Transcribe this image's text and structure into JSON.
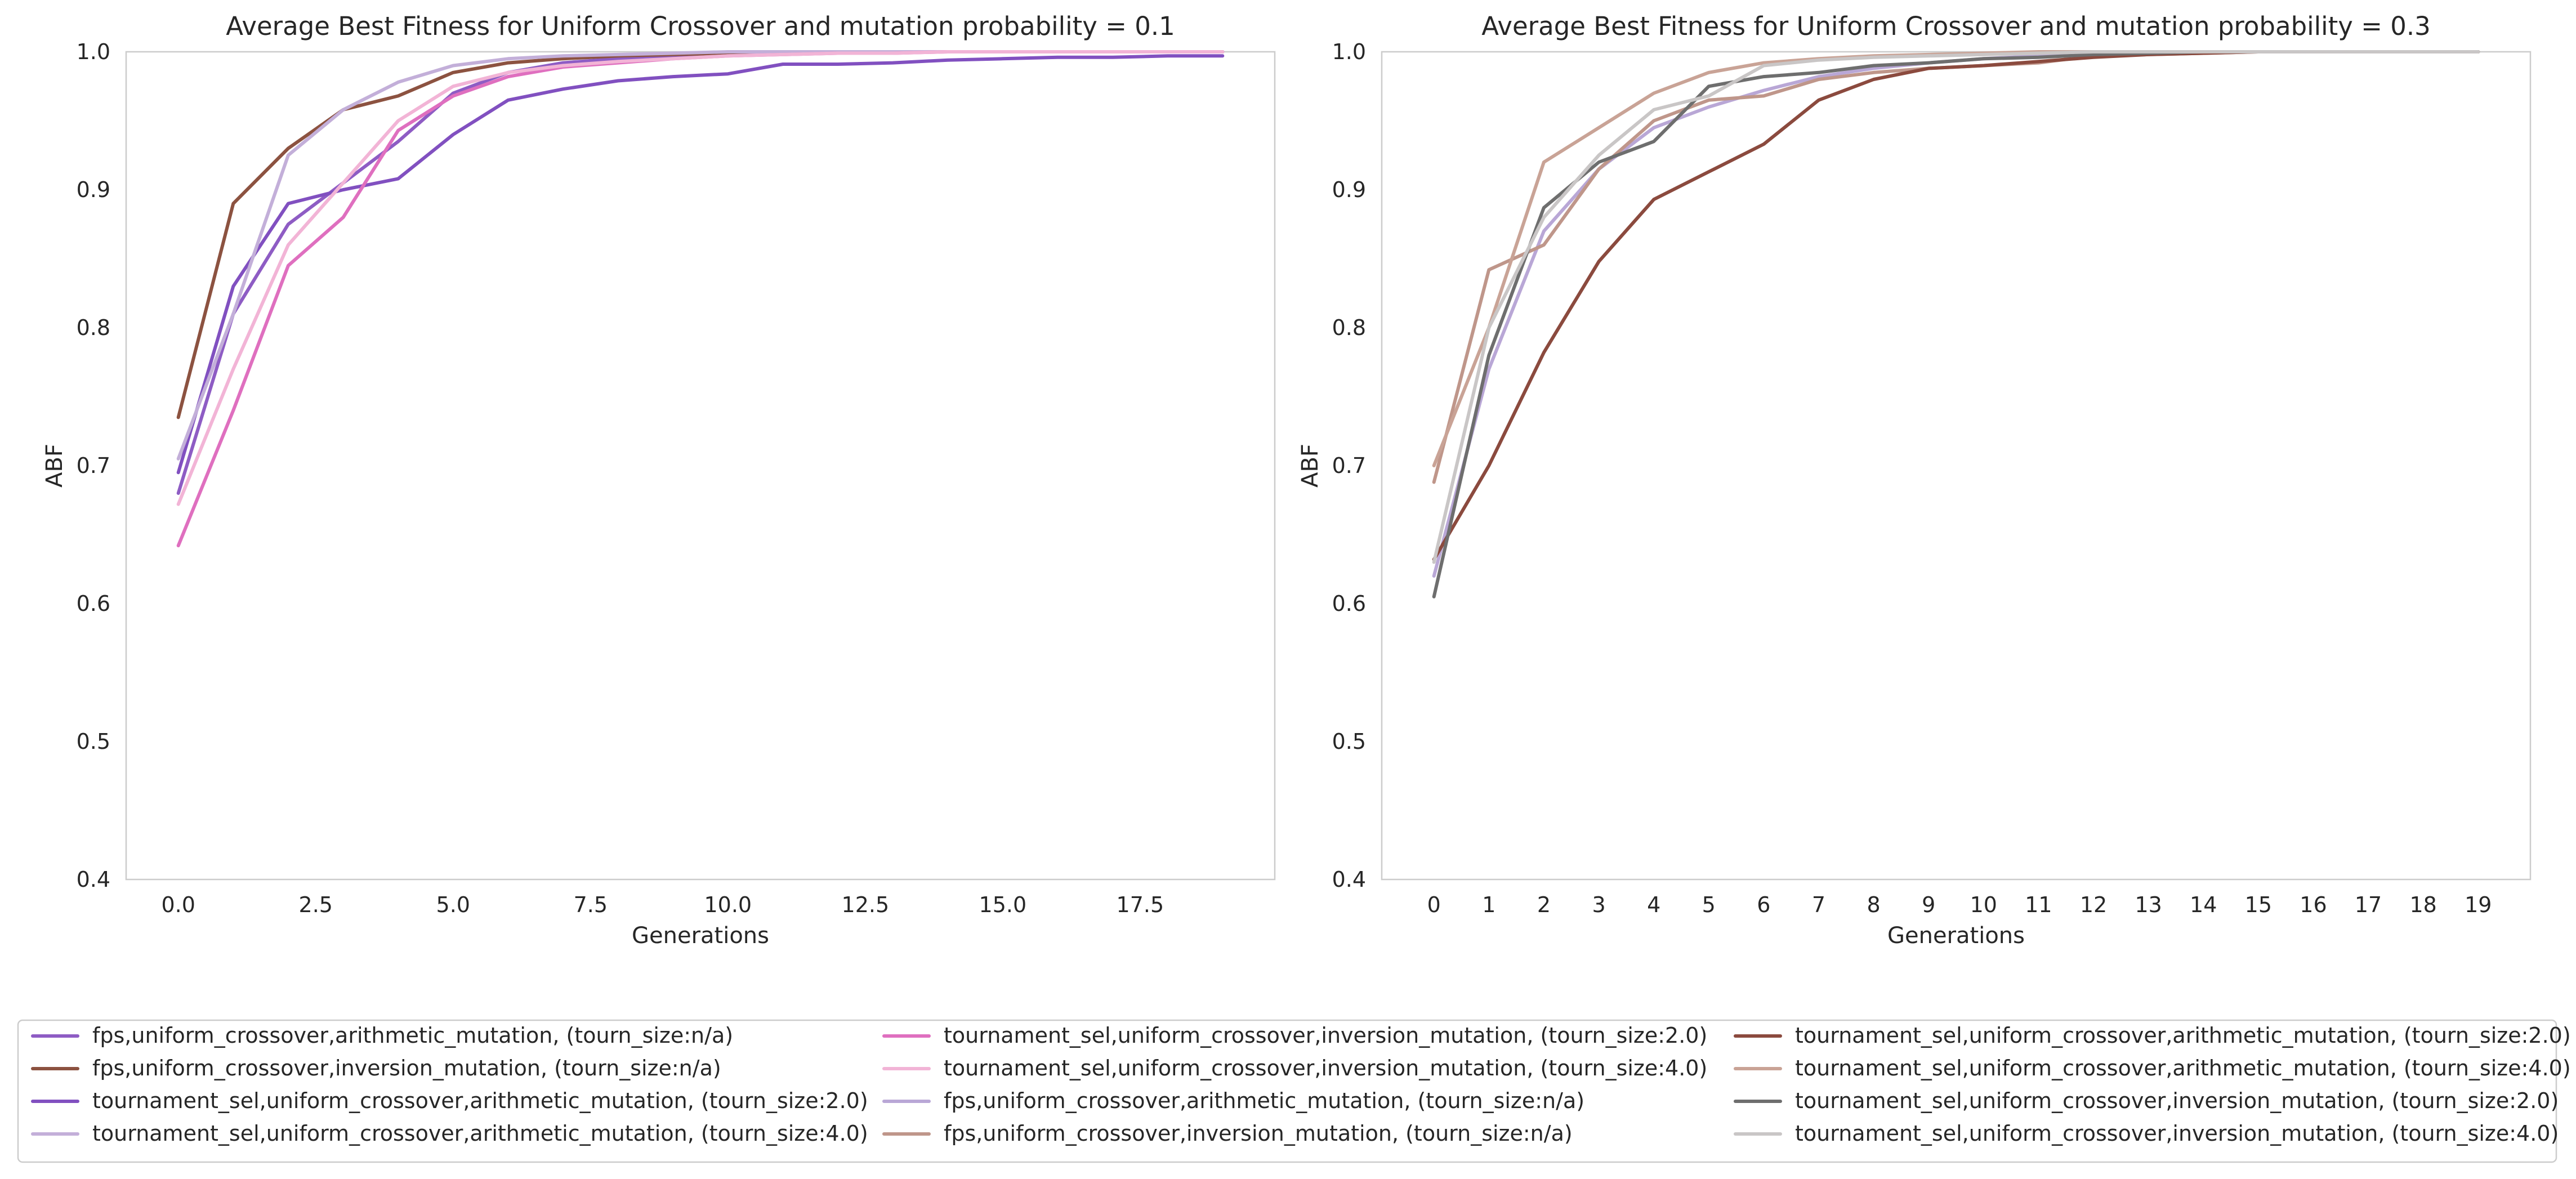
{
  "charts": [
    {
      "type": "line",
      "title": "Average Best Fitness for Uniform Crossover and mutation probability = 0.1",
      "xlabel": "Generations",
      "ylabel": "ABF",
      "xlim": [
        -0.95,
        19.95
      ],
      "ylim": [
        0.4,
        1.0
      ],
      "xticks": [
        0,
        2.5,
        5,
        7.5,
        10,
        12.5,
        15,
        17.5
      ],
      "xtick_labels": [
        "0.0",
        "2.5",
        "5.0",
        "7.5",
        "10.0",
        "12.5",
        "15.0",
        "17.5"
      ],
      "yticks": [
        0.4,
        0.5,
        0.6,
        0.7,
        0.8,
        0.9,
        1.0
      ],
      "ytick_labels": [
        "0.4",
        "0.5",
        "0.6",
        "0.7",
        "0.8",
        "0.9",
        "1.0"
      ],
      "grid": false,
      "x": [
        0,
        1,
        2,
        3,
        4,
        5,
        6,
        7,
        8,
        9,
        10,
        11,
        12,
        13,
        14,
        15,
        16,
        17,
        18,
        19
      ],
      "series": [
        {
          "name": "fps,uniform_crossover,arithmetic_mutation, (tourn_size:n/a)",
          "color": "#8e5cc4",
          "values": [
            0.68,
            0.81,
            0.875,
            0.905,
            0.935,
            0.97,
            0.985,
            0.992,
            0.995,
            0.997,
            0.998,
            0.999,
            0.999,
            1.0,
            1.0,
            1.0,
            1.0,
            1.0,
            1.0,
            1.0
          ]
        },
        {
          "name": "fps,uniform_crossover,inversion_mutation, (tourn_size:n/a)",
          "color": "#8c5240",
          "values": [
            0.735,
            0.89,
            0.93,
            0.958,
            0.968,
            0.985,
            0.992,
            0.995,
            0.997,
            0.998,
            0.999,
            1.0,
            1.0,
            1.0,
            1.0,
            1.0,
            1.0,
            1.0,
            1.0,
            1.0
          ]
        },
        {
          "name": "tournament_sel,uniform_crossover,arithmetic_mutation, (tourn_size:2.0)",
          "color": "#8150c0",
          "values": [
            0.695,
            0.83,
            0.89,
            0.9,
            0.908,
            0.94,
            0.965,
            0.973,
            0.979,
            0.982,
            0.984,
            0.991,
            0.991,
            0.992,
            0.994,
            0.995,
            0.996,
            0.996,
            0.997,
            0.997
          ]
        },
        {
          "name": "tournament_sel,uniform_crossover,arithmetic_mutation, (tourn_size:4.0)",
          "color": "#c3afd9",
          "values": [
            0.705,
            0.81,
            0.925,
            0.958,
            0.978,
            0.99,
            0.995,
            0.997,
            0.998,
            0.999,
            1.0,
            1.0,
            1.0,
            1.0,
            1.0,
            1.0,
            1.0,
            1.0,
            1.0,
            1.0
          ]
        },
        {
          "name": "tournament_sel,uniform_crossover,inversion_mutation, (tourn_size:2.0)",
          "color": "#df6fbf",
          "values": [
            0.642,
            0.74,
            0.845,
            0.88,
            0.943,
            0.968,
            0.982,
            0.989,
            0.992,
            0.995,
            0.997,
            0.998,
            0.999,
            0.999,
            1.0,
            1.0,
            1.0,
            1.0,
            1.0,
            1.0
          ]
        },
        {
          "name": "tournament_sel,uniform_crossover,inversion_mutation, (tourn_size:4.0)",
          "color": "#f2b4d6",
          "values": [
            0.672,
            0.77,
            0.86,
            0.905,
            0.95,
            0.975,
            0.985,
            0.99,
            0.993,
            0.995,
            0.997,
            0.998,
            0.999,
            0.999,
            1.0,
            1.0,
            1.0,
            1.0,
            1.0,
            1.0
          ]
        }
      ]
    },
    {
      "type": "line",
      "title": "Average Best Fitness for Uniform Crossover and mutation probability = 0.3",
      "xlabel": "Generations",
      "ylabel": "ABF",
      "xlim": [
        -0.95,
        19.95
      ],
      "ylim": [
        0.4,
        1.0
      ],
      "xticks": [
        0,
        1,
        2,
        3,
        4,
        5,
        6,
        7,
        8,
        9,
        10,
        11,
        12,
        13,
        14,
        15,
        16,
        17,
        18,
        19
      ],
      "xtick_labels": [
        "0",
        "1",
        "2",
        "3",
        "4",
        "5",
        "6",
        "7",
        "8",
        "9",
        "10",
        "11",
        "12",
        "13",
        "14",
        "15",
        "16",
        "17",
        "18",
        "19"
      ],
      "yticks": [
        0.4,
        0.5,
        0.6,
        0.7,
        0.8,
        0.9,
        1.0
      ],
      "ytick_labels": [
        "0.4",
        "0.5",
        "0.6",
        "0.7",
        "0.8",
        "0.9",
        "1.0"
      ],
      "grid": false,
      "x": [
        0,
        1,
        2,
        3,
        4,
        5,
        6,
        7,
        8,
        9,
        10,
        11,
        12,
        13,
        14,
        15,
        16,
        17,
        18,
        19
      ],
      "series": [
        {
          "name": "fps,uniform_crossover,arithmetic_mutation, (tourn_size:n/a)",
          "color": "#b9a7d6",
          "values": [
            0.62,
            0.77,
            0.87,
            0.915,
            0.945,
            0.96,
            0.972,
            0.982,
            0.988,
            0.992,
            0.995,
            0.997,
            0.998,
            0.999,
            1.0,
            1.0,
            1.0,
            1.0,
            1.0,
            1.0
          ]
        },
        {
          "name": "fps,uniform_crossover,inversion_mutation, (tourn_size:n/a)",
          "color": "#bf968a",
          "values": [
            0.688,
            0.842,
            0.86,
            0.915,
            0.95,
            0.965,
            0.968,
            0.98,
            0.985,
            0.988,
            0.99,
            0.992,
            0.997,
            0.998,
            0.999,
            1.0,
            1.0,
            1.0,
            1.0,
            1.0
          ]
        },
        {
          "name": "tournament_sel,uniform_crossover,arithmetic_mutation, (tourn_size:2.0)",
          "color": "#8b4a3e",
          "values": [
            0.632,
            0.7,
            0.782,
            0.848,
            0.893,
            0.913,
            0.933,
            0.965,
            0.98,
            0.988,
            0.99,
            0.993,
            0.996,
            0.998,
            0.999,
            1.0,
            1.0,
            1.0,
            1.0,
            1.0
          ]
        },
        {
          "name": "tournament_sel,uniform_crossover,arithmetic_mutation, (tourn_size:4.0)",
          "color": "#c9a396",
          "values": [
            0.7,
            0.8,
            0.92,
            0.945,
            0.97,
            0.985,
            0.992,
            0.995,
            0.997,
            0.998,
            0.999,
            1.0,
            1.0,
            1.0,
            1.0,
            1.0,
            1.0,
            1.0,
            1.0,
            1.0
          ]
        },
        {
          "name": "tournament_sel,uniform_crossover,inversion_mutation, (tourn_size:2.0)",
          "color": "#6e6e6e",
          "values": [
            0.605,
            0.78,
            0.887,
            0.92,
            0.935,
            0.975,
            0.982,
            0.985,
            0.99,
            0.992,
            0.995,
            0.996,
            0.998,
            0.999,
            1.0,
            1.0,
            1.0,
            1.0,
            1.0,
            1.0
          ]
        },
        {
          "name": "tournament_sel,uniform_crossover,inversion_mutation, (tourn_size:4.0)",
          "color": "#c9c6c6",
          "values": [
            0.63,
            0.8,
            0.88,
            0.925,
            0.958,
            0.968,
            0.99,
            0.994,
            0.996,
            0.997,
            0.998,
            0.999,
            1.0,
            1.0,
            1.0,
            1.0,
            1.0,
            1.0,
            1.0,
            1.0
          ]
        }
      ]
    }
  ],
  "legend": {
    "placement": "bottom",
    "entries": [
      {
        "label": "fps,uniform_crossover,arithmetic_mutation, (tourn_size:n/a)",
        "color": "#8e5cc4"
      },
      {
        "label": "fps,uniform_crossover,inversion_mutation, (tourn_size:n/a)",
        "color": "#8c5240"
      },
      {
        "label": "tournament_sel,uniform_crossover,arithmetic_mutation, (tourn_size:2.0)",
        "color": "#8150c0"
      },
      {
        "label": "tournament_sel,uniform_crossover,arithmetic_mutation, (tourn_size:4.0)",
        "color": "#c3afd9"
      },
      {
        "label": "tournament_sel,uniform_crossover,inversion_mutation, (tourn_size:2.0)",
        "color": "#df6fbf"
      },
      {
        "label": "tournament_sel,uniform_crossover,inversion_mutation, (tourn_size:4.0)",
        "color": "#f2b4d6"
      },
      {
        "label": "fps,uniform_crossover,arithmetic_mutation, (tourn_size:n/a)",
        "color": "#b9a7d6"
      },
      {
        "label": "fps,uniform_crossover,inversion_mutation, (tourn_size:n/a)",
        "color": "#bf968a"
      },
      {
        "label": "tournament_sel,uniform_crossover,arithmetic_mutation, (tourn_size:2.0)",
        "color": "#8b4a3e"
      },
      {
        "label": "tournament_sel,uniform_crossover,arithmetic_mutation, (tourn_size:4.0)",
        "color": "#c9a396"
      },
      {
        "label": "tournament_sel,uniform_crossover,inversion_mutation, (tourn_size:2.0)",
        "color": "#6e6e6e"
      },
      {
        "label": "tournament_sel,uniform_crossover,inversion_mutation, (tourn_size:4.0)",
        "color": "#c9c6c6"
      }
    ]
  }
}
